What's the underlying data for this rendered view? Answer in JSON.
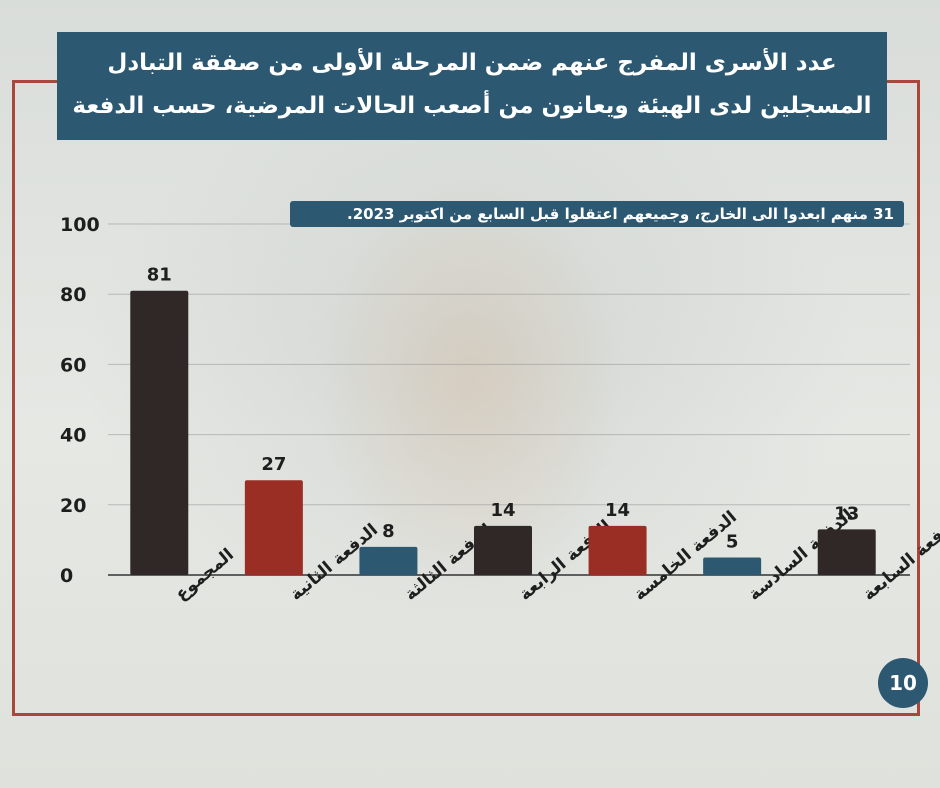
{
  "title": {
    "line1": "عدد الأسرى المفرج عنهم ضمن المرحلة الأولى من صفقة التبادل",
    "line2": "المسجلين لدى الهيئة ويعانون من أصعب الحالات المرضية، حسب الدفعة"
  },
  "note": "31  منهم ابعدوا الى الخارج، وجميعهم اعتقلوا قبل السابع من اكتوبر 2023.",
  "page_number": "10",
  "colors": {
    "title_bg": "#2c5871",
    "frame": "#a8483c",
    "bar_dark": "#2f2826",
    "bar_red": "#9a2e24",
    "bar_blue": "#2c5871"
  },
  "chart_data": {
    "type": "bar",
    "categories": [
      "المجموع",
      "الدفعة الثانية",
      "الدفعة الثالثة",
      "الدفعة الرابعة",
      "الدفعة الخامسة",
      "الدفعة السادسة",
      "الدفعة السابعة"
    ],
    "values": [
      81,
      27,
      8,
      14,
      14,
      5,
      13
    ],
    "bar_colors": [
      "#2f2826",
      "#9a2e24",
      "#2c5871",
      "#2f2826",
      "#9a2e24",
      "#2c5871",
      "#2f2826"
    ],
    "ylim": [
      0,
      100
    ],
    "yticks": [
      "0",
      "20",
      "40",
      "60",
      "80",
      "100"
    ],
    "grid": true
  }
}
